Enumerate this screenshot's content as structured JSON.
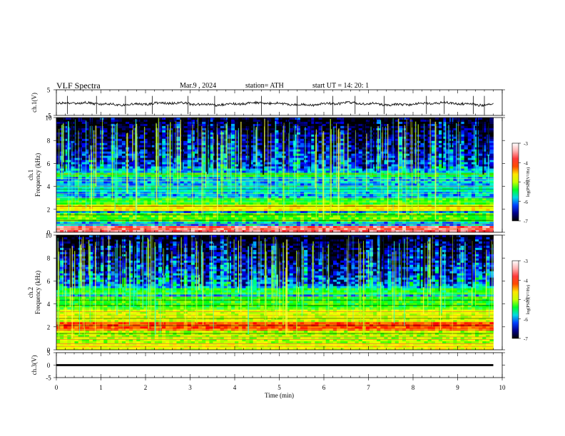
{
  "header": {
    "title": "VLF  Spectra",
    "date": "Mar.9  , 2024",
    "station": "station= ATH",
    "start": "start  UT  =    14: 20: 1"
  },
  "colors": {
    "trace": "#111111",
    "axis": "#000000",
    "colormap": [
      "#000000",
      "#00006e",
      "#0000ff",
      "#00a0ff",
      "#00ffd0",
      "#00ff00",
      "#c8ff00",
      "#ffff00",
      "#ff8000",
      "#ff0000",
      "#ff6060",
      "#ffc8c8",
      "#ffffff"
    ]
  },
  "chart_data": [
    {
      "id": "ch1-waveform",
      "type": "line",
      "ylabel": "ch.1(V)",
      "ylim": [
        -5,
        5
      ],
      "yticks": [
        5,
        -5
      ],
      "xlim": [
        0,
        10
      ],
      "x_extent": 9.8,
      "baseline": -0.5,
      "spike_times": [
        0.25,
        0.9,
        1.55,
        2.15,
        2.95,
        3.55,
        4.6,
        5.4,
        6.2,
        6.7,
        7.35,
        8.3,
        8.7,
        9.35,
        9.6
      ]
    },
    {
      "id": "ch1-spectrogram",
      "type": "heatmap",
      "ylabel": "ch.1\nFrequency  (kHz)",
      "ylim": [
        0,
        10
      ],
      "yticks": [
        0,
        2,
        4,
        6,
        8,
        10
      ],
      "xlim": [
        0,
        10
      ],
      "x_extent": 9.8,
      "colorbar": {
        "label": "log(PSD)(V²/Hz)",
        "range": [
          -7,
          -3
        ],
        "ticks": [
          -3,
          -4,
          -5,
          -6,
          -7
        ]
      },
      "bands_khz": [
        {
          "from": 0,
          "to": 0.6,
          "level": -3.6
        },
        {
          "from": 1.0,
          "to": 1.6,
          "level": -5.2
        },
        {
          "from": 1.9,
          "to": 2.4,
          "level": -4.7
        },
        {
          "from": 2.5,
          "to": 3.0,
          "level": -5.3
        },
        {
          "from": 3.5,
          "to": 4.1,
          "level": -5.7
        },
        {
          "from": 4.8,
          "to": 5.2,
          "level": -5.4
        }
      ]
    },
    {
      "id": "ch2-spectrogram",
      "type": "heatmap",
      "ylabel": "ch.2\nFrequency  (kHz)",
      "ylim": [
        0,
        10
      ],
      "yticks": [
        0,
        2,
        4,
        6,
        8,
        10
      ],
      "xlim": [
        0,
        10
      ],
      "x_extent": 9.8,
      "colorbar": {
        "label": "log(PSD)(V²/Hz)",
        "range": [
          -7,
          -3
        ],
        "ticks": [
          -3,
          -4,
          -5,
          -6,
          -7
        ]
      },
      "bands_khz": [
        {
          "from": 0,
          "to": 0.5,
          "level": -4.8
        },
        {
          "from": 0.5,
          "to": 1.6,
          "level": -5.0
        },
        {
          "from": 1.7,
          "to": 2.4,
          "level": -4.2
        },
        {
          "from": 2.4,
          "to": 3.6,
          "level": -4.9
        },
        {
          "from": 3.6,
          "to": 4.7,
          "level": -5.3
        },
        {
          "from": 4.8,
          "to": 5.3,
          "level": -5.4
        }
      ]
    },
    {
      "id": "ch3-waveform",
      "type": "line",
      "ylabel": "ch.3(V)",
      "ylim": [
        -5,
        5
      ],
      "yticks": [
        5,
        0,
        -5
      ],
      "xlim": [
        0,
        10
      ],
      "x_extent": 9.8,
      "baseline": 0,
      "xlabel": "Time  (min)",
      "xticks": [
        0,
        1,
        2,
        3,
        4,
        5,
        6,
        7,
        8,
        9,
        10
      ]
    }
  ]
}
